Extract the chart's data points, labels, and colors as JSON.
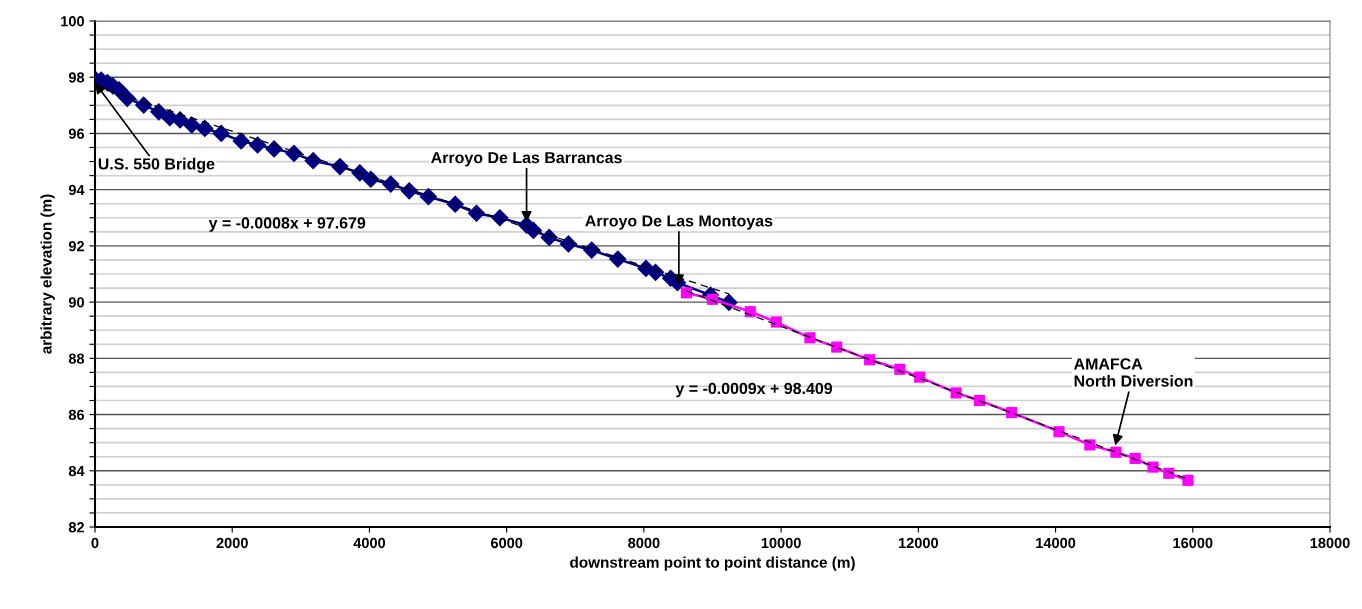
{
  "chart_data": {
    "type": "line",
    "xlabel": "downstream point to point distance (m)",
    "ylabel": "arbitrary elevation (m)",
    "xlim": [
      0,
      18000
    ],
    "xticks": [
      0,
      2000,
      4000,
      6000,
      8000,
      10000,
      12000,
      14000,
      16000,
      18000
    ],
    "ylim": [
      82,
      100
    ],
    "yticks": [
      82,
      {
        "value": 82.5,
        "label": null
      },
      {
        "value": 83,
        "label": null
      },
      {
        "value": 83.5,
        "label": null
      },
      84,
      {
        "value": 84.5,
        "label": null
      },
      {
        "value": 85,
        "label": null
      },
      {
        "value": 85.5,
        "label": null
      },
      86,
      {
        "value": 86.5,
        "label": null
      },
      {
        "value": 87,
        "label": null
      },
      {
        "value": 87.5,
        "label": null
      },
      88,
      {
        "value": 88.5,
        "label": null
      },
      {
        "value": 89,
        "label": null
      },
      {
        "value": 89.5,
        "label": null
      },
      90,
      {
        "value": 90.5,
        "label": null
      },
      {
        "value": 91,
        "label": null
      },
      {
        "value": 91.5,
        "label": null
      },
      92,
      {
        "value": 92.5,
        "label": null
      },
      {
        "value": 93,
        "label": null
      },
      {
        "value": 93.5,
        "label": null
      },
      94,
      {
        "value": 94.5,
        "label": null
      },
      {
        "value": 95,
        "label": null
      },
      {
        "value": 95.5,
        "label": null
      },
      96,
      {
        "value": 96.5,
        "label": null
      },
      {
        "value": 97,
        "label": null
      },
      {
        "value": 97.5,
        "label": null
      },
      98,
      {
        "value": 98.5,
        "label": null
      },
      {
        "value": 99,
        "label": null
      },
      {
        "value": 99.5,
        "label": null
      },
      100
    ],
    "grid": "y",
    "legend": false,
    "series": [
      {
        "color": "#000080",
        "marker": "diamond",
        "line_style": "solid",
        "x": [
          0,
          90,
          180,
          260,
          350,
          470,
          710,
          930,
          1090,
          1240,
          1410,
          1600,
          1840,
          2130,
          2370,
          2610,
          2900,
          3180,
          3570,
          3860,
          4020,
          4310,
          4580,
          4860,
          5250,
          5560,
          5900,
          6290,
          6390,
          6620,
          6900,
          7240,
          7620,
          8030,
          8170,
          8390,
          8490,
          8970,
          9240
        ],
        "values": [
          97.93,
          97.9,
          97.81,
          97.69,
          97.55,
          97.25,
          97.01,
          96.77,
          96.56,
          96.48,
          96.3,
          96.18,
          96.0,
          95.73,
          95.59,
          95.45,
          95.29,
          95.03,
          94.82,
          94.6,
          94.37,
          94.2,
          93.96,
          93.75,
          93.48,
          93.16,
          93.0,
          92.74,
          92.55,
          92.3,
          92.07,
          91.85,
          91.53,
          91.2,
          91.06,
          90.85,
          90.69,
          90.25,
          89.99
        ]
      },
      {
        "color": "#ff00ff",
        "marker": "square",
        "line_style": "solid",
        "x": [
          8620,
          9000,
          9550,
          9930,
          10420,
          10810,
          11290,
          11730,
          12020,
          12550,
          12890,
          13360,
          14050,
          14500,
          14880,
          15160,
          15420,
          15650,
          15930
        ],
        "values": [
          90.33,
          90.1,
          89.66,
          89.29,
          88.73,
          88.4,
          87.95,
          87.61,
          87.33,
          86.77,
          86.5,
          86.07,
          85.39,
          84.92,
          84.66,
          84.44,
          84.13,
          83.91,
          83.66
        ]
      },
      {
        "color": "#000000",
        "marker": "none",
        "line_style": "dashed",
        "x": [
          0,
          9240
        ],
        "values": [
          97.68,
          90.29
        ]
      },
      {
        "color": "#000000",
        "marker": "none",
        "line_style": "dashed",
        "x": [
          8620,
          15930
        ],
        "values": [
          90.4,
          83.7
        ]
      }
    ],
    "annotations": [
      {
        "text": "U.S. 550 Bridge",
        "x": 0,
        "y": 97.8
      },
      {
        "text": "Arroyo De Las Barrancas",
        "x": 6290,
        "y": 92.85
      },
      {
        "text": "Arroyo De Las Montoyas",
        "x": 8510,
        "y": 90.6
      },
      {
        "text": "AMAFCA\nNorth Diversion",
        "x": 14870,
        "y": 84.9
      },
      "y = -0.0008x + 97.679",
      "y = -0.0009x + 98.409"
    ]
  }
}
